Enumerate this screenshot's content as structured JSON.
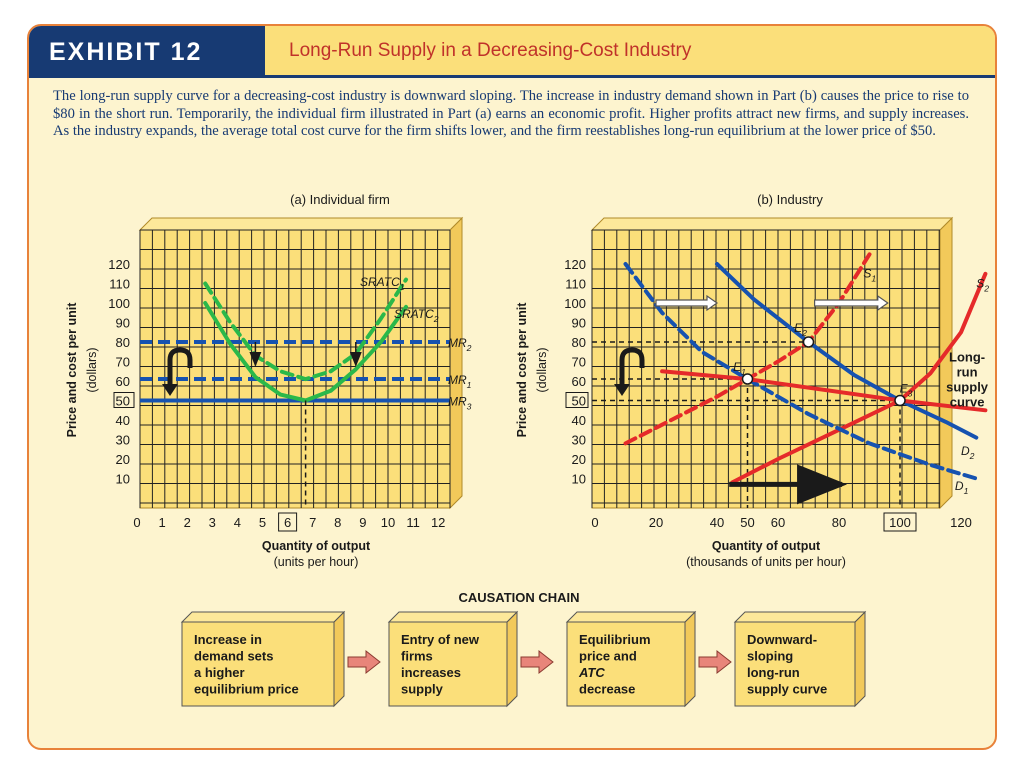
{
  "exhibit": {
    "label": "EXHIBIT 12",
    "title": "Long-Run Supply in a Decreasing-Cost Industry"
  },
  "caption": "The long-run supply curve for a decreasing-cost industry is downward sloping. The increase in industry demand shown in Part (b) causes the price to rise to $80 in the short run. Temporarily, the individual firm illustrated in Part (a) earns an economic profit. Higher profits attract new firms, and supply increases. As the industry expands, the average total cost curve for the firm shifts lower, and the firm reestablishes long-run equilibrium at the lower price of $50.",
  "colors": {
    "navy": "#173a73",
    "blue": "#1652b0",
    "green": "#2bb84a",
    "red": "#e52a2a",
    "grid": "#222222",
    "panel": "#fbdf7a",
    "panel_side": "#f2c95a"
  },
  "chart_data": [
    {
      "type": "line",
      "title": "(a) Individual firm",
      "xlabel": "Quantity of output",
      "xlabel_sub": "(units per hour)",
      "ylabel": "Price and cost per unit",
      "ylabel_sub": "(dollars)",
      "xlim": [
        0,
        12
      ],
      "ylim": [
        0,
        120
      ],
      "grid": true,
      "x_ticks": [
        "0",
        "1",
        "2",
        "3",
        "4",
        "5",
        "6",
        "7",
        "8",
        "9",
        "10",
        "11",
        "12"
      ],
      "y_ticks": [
        "10",
        "20",
        "30",
        "40",
        "50",
        "60",
        "70",
        "80",
        "90",
        "100",
        "110",
        "120"
      ],
      "boxed_x_tick": "6",
      "boxed_y_tick": "50",
      "series": [
        {
          "name": "SRATC1",
          "label": "SRATC",
          "sub": "1",
          "style": "dashed",
          "color": "#2bb84a",
          "points": [
            [
              2,
              110
            ],
            [
              3,
              90
            ],
            [
              4,
              73
            ],
            [
              5,
              65
            ],
            [
              6,
              61
            ],
            [
              7,
              65
            ],
            [
              8,
              74
            ],
            [
              9,
              92
            ],
            [
              10,
              112
            ]
          ]
        },
        {
          "name": "SRATC2",
          "label": "SRATC",
          "sub": "2",
          "style": "solid",
          "color": "#2bb84a",
          "points": [
            [
              2,
              100
            ],
            [
              3,
              79
            ],
            [
              4,
              62
            ],
            [
              5,
              53
            ],
            [
              6,
              50
            ],
            [
              7,
              55
            ],
            [
              8,
              66
            ],
            [
              9,
              80
            ],
            [
              10,
              98
            ]
          ]
        },
        {
          "name": "MR2",
          "label": "MR",
          "sub": "2",
          "style": "dashed",
          "color": "#1652b0",
          "y": 80
        },
        {
          "name": "MR1",
          "label": "MR",
          "sub": "1",
          "style": "dashed",
          "color": "#1652b0",
          "y": 61
        },
        {
          "name": "MR3",
          "label": "MR",
          "sub": "3",
          "style": "solid",
          "color": "#1652b0",
          "y": 50
        }
      ]
    },
    {
      "type": "line",
      "title": "(b) Industry",
      "xlabel": "Quantity of output",
      "xlabel_sub": "(thousands of units per hour)",
      "ylabel": "Price and cost per unit",
      "ylabel_sub": "(dollars)",
      "xlim": [
        0,
        130
      ],
      "ylim": [
        0,
        120
      ],
      "grid": true,
      "x_ticks": [
        {
          "v": 0,
          "t": "0"
        },
        {
          "v": 20,
          "t": "20"
        },
        {
          "v": 40,
          "t": "40"
        },
        {
          "v": 50,
          "t": "50"
        },
        {
          "v": 60,
          "t": "60"
        },
        {
          "v": 80,
          "t": "80"
        },
        {
          "v": 100,
          "t": "100"
        },
        {
          "v": 120,
          "t": "120"
        }
      ],
      "y_ticks": [
        "10",
        "20",
        "30",
        "40",
        "50",
        "60",
        "70",
        "80",
        "90",
        "100",
        "110",
        "120"
      ],
      "boxed_x_tick": "100",
      "boxed_y_tick": "50",
      "series": [
        {
          "name": "S1",
          "label": "S",
          "sub": "1",
          "style": "dashed",
          "color": "#e52a2a",
          "points": [
            [
              10,
              28
            ],
            [
              25,
              40
            ],
            [
              40,
              52
            ],
            [
              50,
              61
            ],
            [
              60,
              70
            ],
            [
              70,
              80
            ],
            [
              80,
              100
            ],
            [
              90,
              125
            ]
          ]
        },
        {
          "name": "S2",
          "label": "S",
          "sub": "2",
          "style": "solid",
          "color": "#e52a2a",
          "points": [
            [
              45,
              8
            ],
            [
              60,
              20
            ],
            [
              80,
              35
            ],
            [
              100,
              50
            ],
            [
              110,
              64
            ],
            [
              120,
              85
            ],
            [
              128,
              115
            ]
          ]
        },
        {
          "name": "D1",
          "label": "D",
          "sub": "1",
          "style": "dashed",
          "color": "#1652b0",
          "points": [
            [
              10,
              120
            ],
            [
              22,
              95
            ],
            [
              35,
              75
            ],
            [
              50,
              61
            ],
            [
              70,
              43
            ],
            [
              90,
              28
            ],
            [
              110,
              17
            ],
            [
              125,
              10
            ]
          ]
        },
        {
          "name": "D2",
          "label": "D",
          "sub": "2",
          "style": "solid",
          "color": "#1652b0",
          "points": [
            [
              40,
              120
            ],
            [
              52,
              102
            ],
            [
              70,
              80
            ],
            [
              85,
              63
            ],
            [
              100,
              50
            ],
            [
              115,
              39
            ],
            [
              125,
              31
            ]
          ]
        },
        {
          "name": "Long-run supply curve",
          "label": "Long-run supply curve",
          "style": "solid",
          "color": "#e52a2a",
          "points": [
            [
              22,
              65
            ],
            [
              50,
              61
            ],
            [
              100,
              50
            ],
            [
              128,
              45
            ]
          ]
        }
      ],
      "points": [
        {
          "name": "E1",
          "label": "E",
          "sub": "1",
          "x": 50,
          "y": 61
        },
        {
          "name": "E2",
          "label": "E",
          "sub": "2",
          "x": 70,
          "y": 80
        },
        {
          "name": "E3",
          "label": "E",
          "sub": "3",
          "x": 100,
          "y": 50
        }
      ],
      "long_run_label": [
        "Long-",
        "run",
        "supply",
        "curve"
      ]
    }
  ],
  "causation_chain": {
    "title": "CAUSATION CHAIN",
    "boxes": [
      [
        "Increase in",
        "demand sets",
        "a higher",
        "equilibrium price"
      ],
      [
        "Entry of new",
        "firms",
        "increases",
        "supply"
      ],
      [
        "Equilibrium",
        "price and",
        "ATC",
        "decrease"
      ],
      [
        "Downward-",
        "sloping",
        "long-run",
        "supply curve"
      ]
    ]
  }
}
